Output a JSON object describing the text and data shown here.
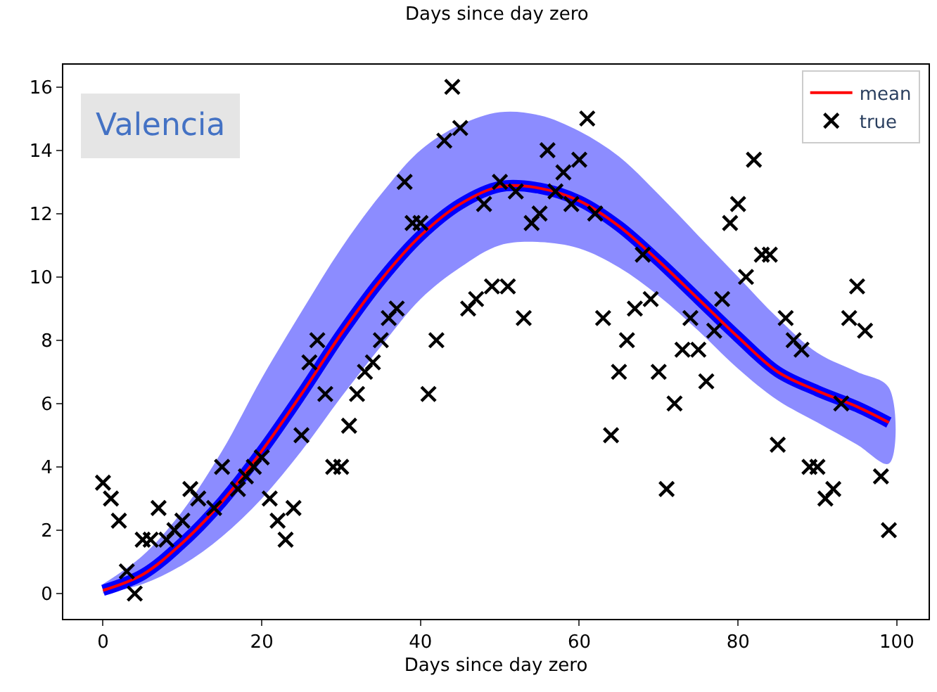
{
  "chart_data": {
    "type": "scatter",
    "xlabel": "Days since day zero",
    "annotations": [
      "Valencia",
      "Days since day zero"
    ],
    "xlim": [
      -5,
      104
    ],
    "ylim": [
      -0.8,
      16.7
    ],
    "xticks": [
      0,
      20,
      40,
      60,
      80,
      100
    ],
    "yticks": [
      0,
      2,
      4,
      6,
      8,
      10,
      12,
      14,
      16
    ],
    "legend": "top right",
    "series": [
      {
        "type": "line",
        "color": "#0000ff",
        "marker": "none",
        "x": [
          0,
          5,
          10,
          15,
          20,
          25,
          30,
          35,
          40,
          45,
          50,
          55,
          60,
          65,
          70,
          75,
          80,
          85,
          90,
          95,
          99
        ],
        "values": [
          0.1,
          0.6,
          1.6,
          2.9,
          4.5,
          6.3,
          8.2,
          9.9,
          11.3,
          12.3,
          12.85,
          12.8,
          12.4,
          11.6,
          10.5,
          9.3,
          8.1,
          7.0,
          6.4,
          5.9,
          5.4
        ],
        "upper": [
          0.3,
          1.2,
          2.6,
          4.5,
          6.8,
          8.9,
          10.9,
          12.6,
          14.0,
          14.8,
          15.2,
          15.1,
          14.6,
          13.8,
          12.6,
          11.3,
          10.0,
          8.7,
          7.6,
          7.0,
          6.5
        ],
        "lower": [
          0.0,
          0.3,
          0.9,
          1.8,
          3.0,
          4.5,
          6.2,
          7.8,
          9.3,
          10.3,
          11.0,
          11.1,
          10.9,
          10.3,
          9.4,
          8.3,
          7.1,
          6.1,
          5.4,
          4.7,
          4.1
        ]
      },
      {
        "name": "mean",
        "type": "line",
        "color": "#ff0000",
        "line_style": "solid",
        "marker": "none",
        "x": [
          0,
          5,
          10,
          15,
          20,
          25,
          30,
          35,
          40,
          45,
          50,
          55,
          60,
          65,
          70,
          75,
          80,
          85,
          90,
          95,
          99
        ],
        "values": [
          0.1,
          0.6,
          1.6,
          2.9,
          4.5,
          6.3,
          8.2,
          9.9,
          11.3,
          12.3,
          12.85,
          12.8,
          12.4,
          11.6,
          10.5,
          9.3,
          8.1,
          7.0,
          6.4,
          5.9,
          5.4
        ]
      },
      {
        "name": "true",
        "color": "#000000",
        "marker": "cross",
        "x": [
          0,
          1,
          2,
          3,
          4,
          5,
          6,
          7,
          8,
          9,
          10,
          11,
          12,
          14,
          15,
          17,
          18,
          19,
          20,
          21,
          22,
          23,
          24,
          25,
          26,
          27,
          28,
          29,
          30,
          31,
          32,
          33,
          34,
          35,
          36,
          37,
          38,
          39,
          40,
          41,
          42,
          43,
          44,
          45,
          46,
          47,
          48,
          49,
          50,
          51,
          52,
          53,
          54,
          55,
          56,
          57,
          58,
          59,
          60,
          61,
          62,
          63,
          64,
          65,
          66,
          67,
          68,
          69,
          70,
          71,
          72,
          73,
          74,
          75,
          76,
          77,
          78,
          79,
          80,
          81,
          82,
          83,
          84,
          85,
          86,
          87,
          88,
          89,
          90,
          91,
          92,
          93,
          94,
          95,
          96,
          98,
          99
        ],
        "values": [
          3.5,
          3.0,
          2.3,
          0.7,
          0.0,
          1.7,
          1.7,
          2.7,
          1.7,
          2.0,
          2.3,
          3.3,
          3.0,
          2.7,
          4.0,
          3.3,
          3.7,
          4.0,
          4.3,
          3.0,
          2.3,
          1.7,
          2.7,
          5.0,
          7.3,
          8.0,
          6.3,
          4.0,
          4.0,
          5.3,
          6.3,
          7.0,
          7.3,
          8.0,
          8.7,
          9.0,
          13.0,
          11.7,
          11.7,
          6.3,
          8.0,
          14.3,
          16.0,
          14.7,
          9.0,
          9.3,
          12.3,
          9.7,
          13.0,
          9.7,
          12.7,
          8.7,
          11.7,
          12.0,
          14.0,
          12.7,
          13.3,
          12.3,
          13.7,
          15.0,
          12.0,
          8.7,
          5.0,
          7.0,
          8.0,
          9.0,
          10.7,
          9.3,
          7.0,
          3.3,
          6.0,
          7.7,
          8.7,
          7.7,
          6.7,
          8.3,
          9.3,
          11.7,
          12.3,
          10.0,
          13.7,
          10.7,
          10.7,
          4.7,
          8.7,
          8.0,
          7.7,
          4.0,
          4.0,
          3.0,
          3.3,
          6.0,
          8.7,
          9.7,
          8.3,
          3.7,
          2.0
        ]
      }
    ]
  }
}
